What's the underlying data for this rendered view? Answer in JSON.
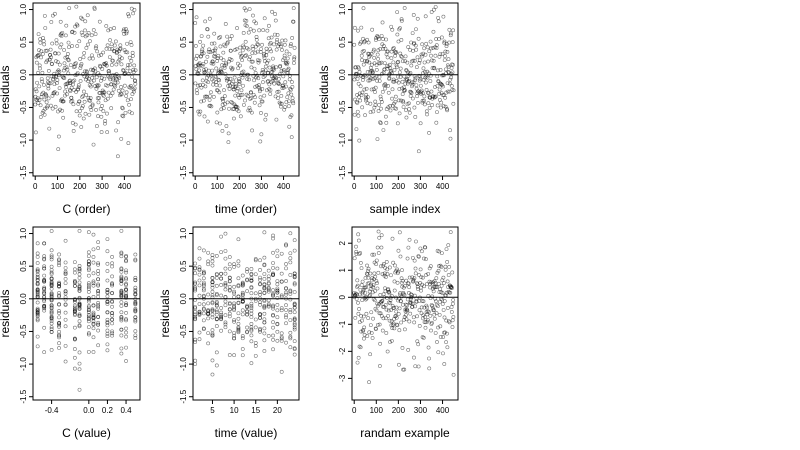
{
  "chart_data": [
    {
      "type": "scatter",
      "xlabel": "C (order)",
      "ylabel": "residuals",
      "xlim": [
        -10,
        470
      ],
      "ylim": [
        -1.55,
        1.1
      ],
      "xticks": [
        0,
        100,
        200,
        300,
        400
      ],
      "xtick_labels": [
        "0",
        "100",
        "200",
        "300",
        "400"
      ],
      "yticks": [
        -1.5,
        -1.0,
        -0.5,
        0.0,
        0.5,
        1.0
      ],
      "ytick_labels": [
        "-1.5",
        "-1.0",
        "-0.5",
        "0.0",
        "0.5",
        "1.0"
      ],
      "hline": 0,
      "point_count": 450,
      "x_range": [
        0,
        450
      ],
      "y_spread": 0.4,
      "seed": 11,
      "x_mode": "index",
      "marker": "open-circle"
    },
    {
      "type": "scatter",
      "xlabel": "time (order)",
      "ylabel": "residuals",
      "xlim": [
        -10,
        470
      ],
      "ylim": [
        -1.55,
        1.1
      ],
      "xticks": [
        0,
        100,
        200,
        300,
        400
      ],
      "xtick_labels": [
        "0",
        "100",
        "200",
        "300",
        "400"
      ],
      "yticks": [
        -1.5,
        -1.0,
        -0.5,
        0.0,
        0.5,
        1.0
      ],
      "ytick_labels": [
        "-1.5",
        "-1.0",
        "-0.5",
        "0.0",
        "0.5",
        "1.0"
      ],
      "hline": 0,
      "point_count": 450,
      "x_range": [
        0,
        450
      ],
      "y_spread": 0.4,
      "seed": 23,
      "x_mode": "index",
      "marker": "open-circle"
    },
    {
      "type": "scatter",
      "xlabel": "sample index",
      "ylabel": "residuals",
      "xlim": [
        -10,
        470
      ],
      "ylim": [
        -1.55,
        1.1
      ],
      "xticks": [
        0,
        100,
        200,
        300,
        400
      ],
      "xtick_labels": [
        "0",
        "100",
        "200",
        "300",
        "400"
      ],
      "yticks": [
        -1.5,
        -1.0,
        -0.5,
        0.0,
        0.5,
        1.0
      ],
      "ytick_labels": [
        "-1.5",
        "-1.0",
        "-0.5",
        "0.0",
        "0.5",
        "1.0"
      ],
      "hline": 0,
      "point_count": 450,
      "x_range": [
        0,
        450
      ],
      "y_spread": 0.4,
      "seed": 37,
      "x_mode": "index",
      "marker": "open-circle"
    },
    {
      "type": "scatter",
      "xlabel": "C (value)",
      "ylabel": "residuals",
      "xlim": [
        -0.6,
        0.55
      ],
      "ylim": [
        -1.55,
        1.1
      ],
      "xticks": [
        -0.4,
        0.0,
        0.2,
        0.4
      ],
      "xtick_labels": [
        "-0.4",
        "0.0",
        "0.2",
        "0.4"
      ],
      "yticks": [
        -1.5,
        -1.0,
        -0.5,
        0.0,
        0.5,
        1.0
      ],
      "ytick_labels": [
        "-1.5",
        "-1.0",
        "-0.5",
        "0.0",
        "0.5",
        "1.0"
      ],
      "hline": 0,
      "point_count": 450,
      "x_levels": [
        -0.55,
        -0.48,
        -0.4,
        -0.32,
        -0.25,
        -0.15,
        -0.1,
        0.0,
        0.05,
        0.1,
        0.2,
        0.25,
        0.35,
        0.4,
        0.5
      ],
      "y_spread": 0.4,
      "seed": 51,
      "x_mode": "levels",
      "marker": "open-circle"
    },
    {
      "type": "scatter",
      "xlabel": "time (value)",
      "ylabel": "residuals",
      "xlim": [
        0.5,
        25
      ],
      "ylim": [
        -1.55,
        1.1
      ],
      "xticks": [
        5,
        10,
        15,
        20
      ],
      "xtick_labels": [
        "5",
        "10",
        "15",
        "20"
      ],
      "yticks": [
        -1.5,
        -1.0,
        -0.5,
        0.0,
        0.5,
        1.0
      ],
      "ytick_labels": [
        "-1.5",
        "-1.0",
        "-0.5",
        "0.0",
        "0.5",
        "1.0"
      ],
      "hline": 0,
      "point_count": 450,
      "x_levels": [
        1,
        2,
        3,
        4,
        5,
        6,
        7,
        8,
        9,
        10,
        11,
        12,
        13,
        14,
        15,
        16,
        17,
        18,
        19,
        20,
        21,
        22,
        23,
        24
      ],
      "y_spread": 0.4,
      "seed": 67,
      "x_mode": "levels",
      "marker": "open-circle"
    },
    {
      "type": "scatter",
      "xlabel": "randam example",
      "ylabel": "residuals",
      "xlim": [
        -10,
        470
      ],
      "ylim": [
        -3.8,
        2.6
      ],
      "xticks": [
        0,
        100,
        200,
        300,
        400
      ],
      "xtick_labels": [
        "0",
        "100",
        "200",
        "300",
        "400"
      ],
      "yticks": [
        -3,
        -2,
        -1,
        0,
        1,
        2
      ],
      "ytick_labels": [
        "-3",
        "-2",
        "-1",
        "0",
        "1",
        "2"
      ],
      "hline": 0,
      "point_count": 450,
      "x_range": [
        0,
        450
      ],
      "y_spread": 1.0,
      "seed": 89,
      "x_mode": "index",
      "marker": "open-circle"
    }
  ]
}
